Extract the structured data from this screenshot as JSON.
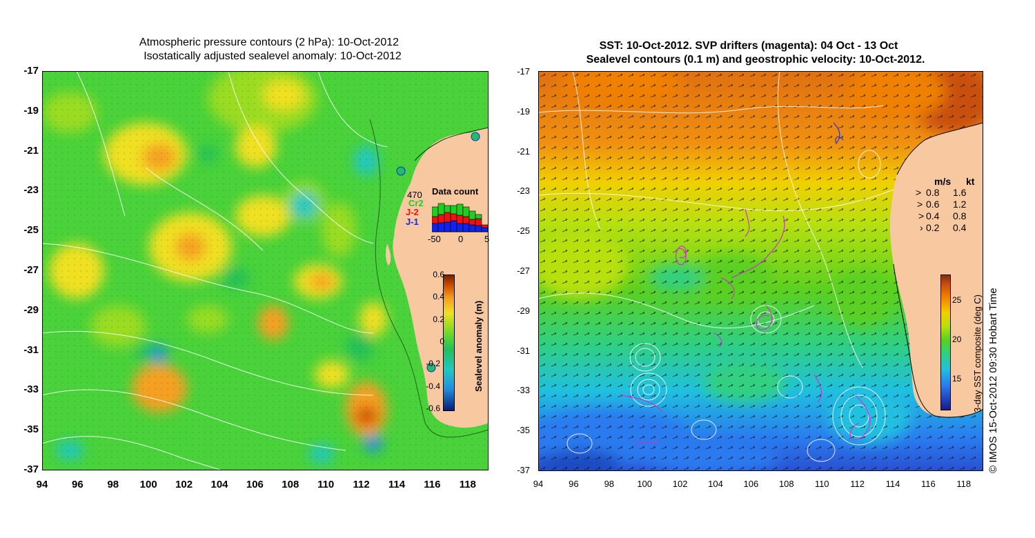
{
  "left_panel": {
    "title_line1": "Atmospheric pressure contours (2 hPa): 10-Oct-2012",
    "title_line2": "Isostatically adjusted sealevel anomaly: 10-Oct-2012",
    "yticks": [
      "-17",
      "-19",
      "-21",
      "-23",
      "-25",
      "-27",
      "-29",
      "-31",
      "-33",
      "-35",
      "-37"
    ],
    "xticks": [
      "94",
      "96",
      "98",
      "100",
      "102",
      "104",
      "106",
      "108",
      "110",
      "112",
      "114",
      "116",
      "118"
    ],
    "colorbar": {
      "title": "Sealevel anomaly (m)",
      "ticks": [
        "0.6",
        "0.4",
        "0.2",
        "0",
        "-0.2",
        "-0.4",
        "-0.6"
      ]
    },
    "data_count": {
      "title": "Data count",
      "total": "470",
      "series": [
        "Cr2",
        "J-2",
        "J-1"
      ],
      "series_colors": [
        "#22cc22",
        "#ee1111",
        "#1122ee"
      ],
      "axis": [
        "-50",
        "0",
        "5"
      ]
    }
  },
  "right_panel": {
    "title_line1": "SST: 10-Oct-2012. SVP drifters (magenta): 04 Oct - 13 Oct",
    "title_line2": "Sealevel contours (0.1 m) and geostrophic velocity: 10-Oct-2012.",
    "yticks": [
      "-17",
      "-19",
      "-21",
      "-23",
      "-25",
      "-27",
      "-29",
      "-31",
      "-33",
      "-35",
      "-37"
    ],
    "xticks": [
      "94",
      "96",
      "98",
      "100",
      "102",
      "104",
      "106",
      "108",
      "110",
      "112",
      "114",
      "116",
      "118"
    ],
    "velocity_legend": {
      "header_ms": "m/s",
      "header_kt": "kt",
      "rows": [
        {
          "ms": "0.8",
          "kt": "1.6"
        },
        {
          "ms": "0.6",
          "kt": "1.2"
        },
        {
          "ms": "0.4",
          "kt": "0.8"
        },
        {
          "ms": "0.2",
          "kt": "0.4"
        }
      ]
    },
    "colorbar": {
      "title": "3-day SST composite (deg C)",
      "ticks": [
        "25",
        "20",
        "15"
      ]
    }
  },
  "credit": "© IMOS 15-Oct-2012 09:30 Hobart Time",
  "colors": {
    "land": "#f8c8a0",
    "sealevel_ramp": [
      "#0a1a7a",
      "#1f8fe0",
      "#20c8c0",
      "#22c05a",
      "#49d23a",
      "#9adc20",
      "#f0e020",
      "#f5a020",
      "#d05000",
      "#7a2000"
    ],
    "sst_ramp": [
      "#1a1a8a",
      "#2a7af0",
      "#20c0e0",
      "#30d080",
      "#5ad020",
      "#b8e010",
      "#f0d000",
      "#f08000",
      "#c85010",
      "#803010"
    ],
    "drifter": "#cc33cc"
  }
}
